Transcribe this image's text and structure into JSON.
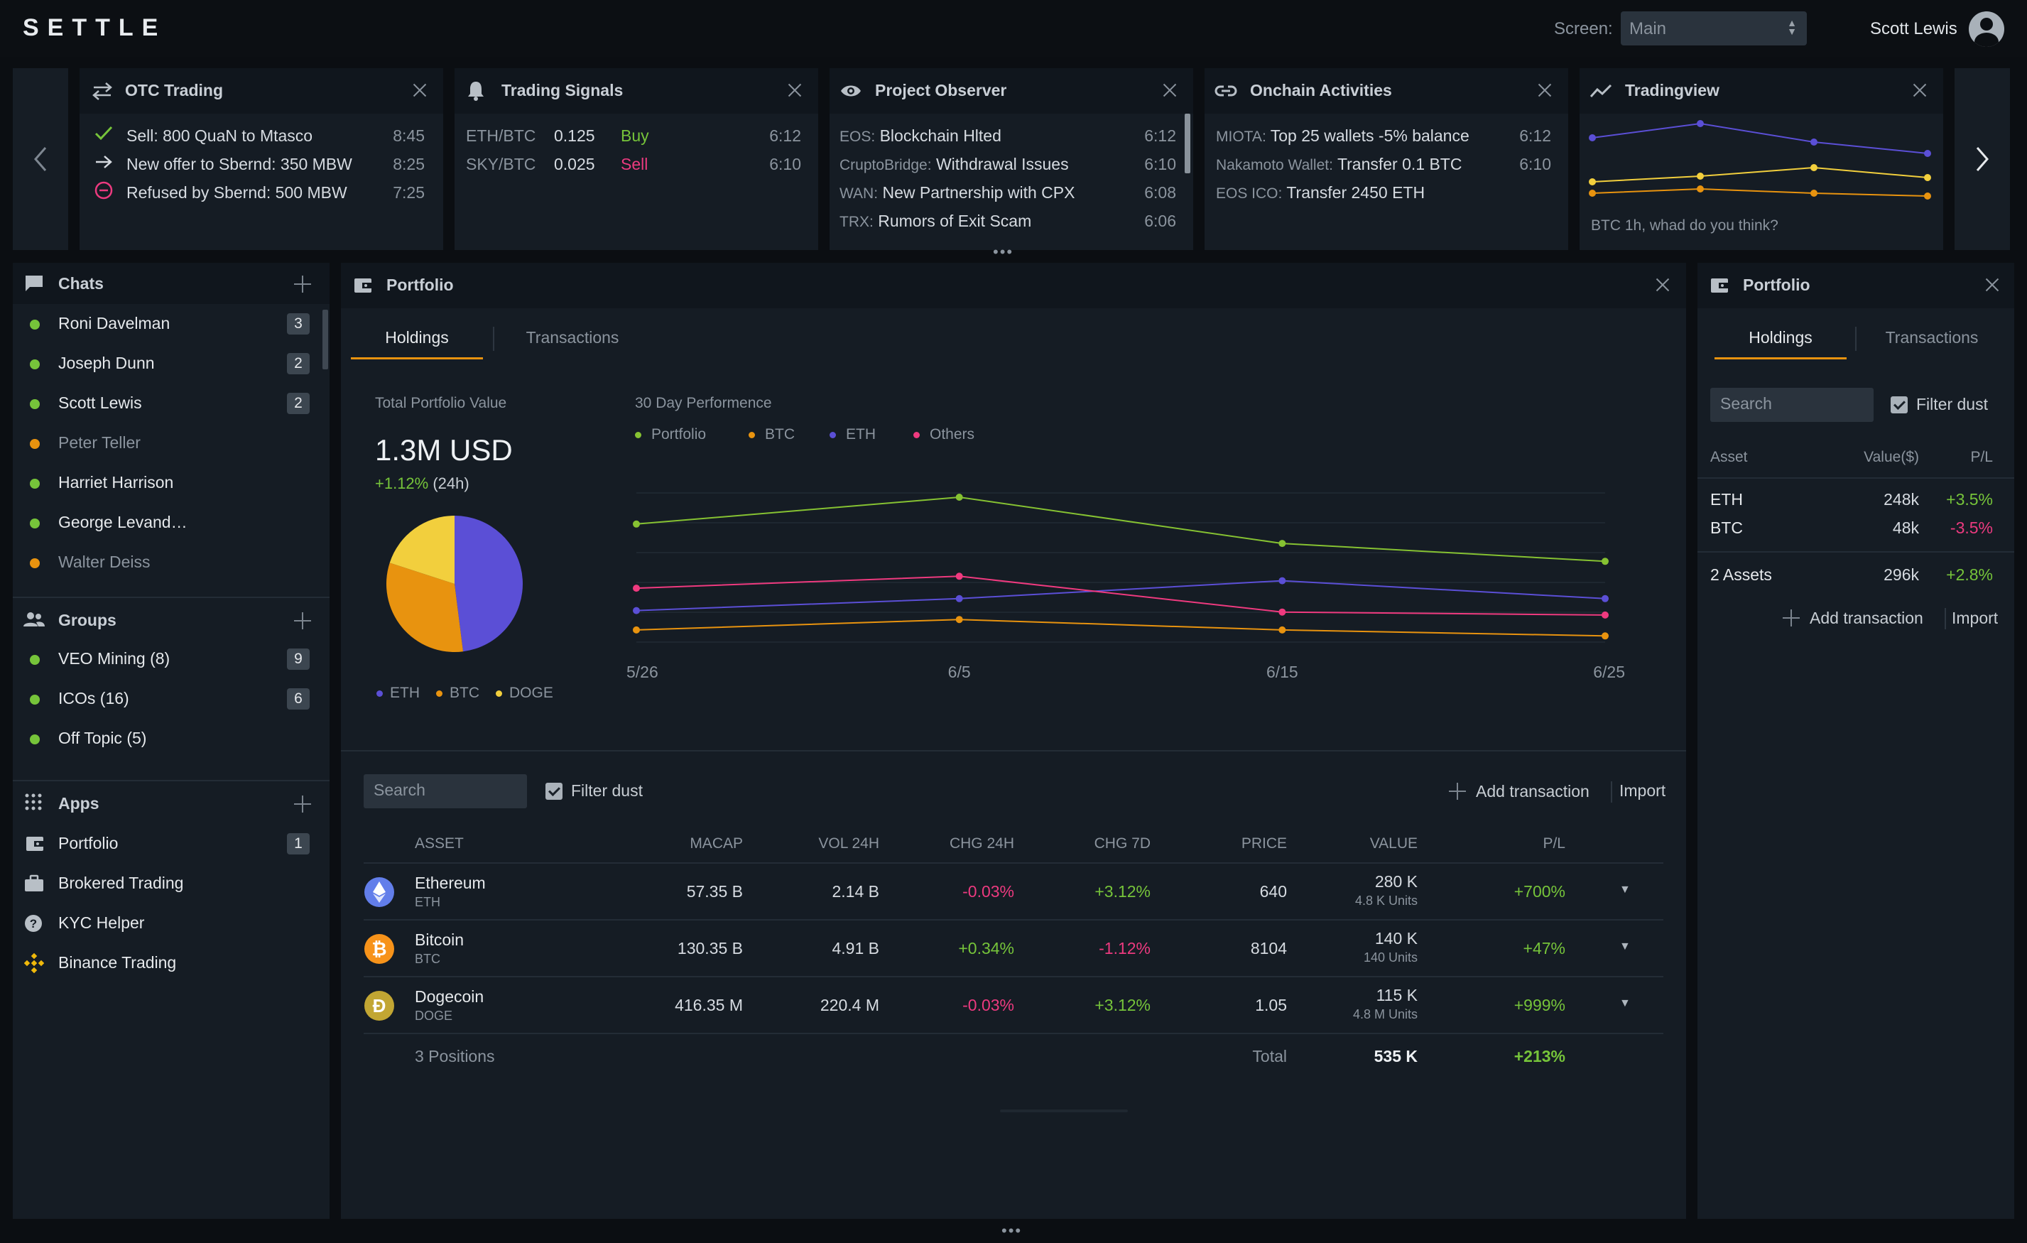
{
  "topbar": {
    "logo": "SETTLE",
    "screen_label": "Screen:",
    "screen_value": "Main",
    "user_name": "Scott Lewis"
  },
  "widgets": {
    "otc": {
      "title": "OTC Trading",
      "rows": [
        {
          "text": "Sell: 800 QuaN to Mtasco",
          "time": "8:45"
        },
        {
          "text": "New offer to Sbernd: 350 MBW",
          "time": "8:25"
        },
        {
          "text": "Refused by Sbernd: 500 MBW",
          "time": "7:25"
        }
      ]
    },
    "signals": {
      "title": "Trading Signals",
      "rows": [
        {
          "pair": "ETH/BTC",
          "value": "0.125",
          "action": "Buy",
          "time": "6:12"
        },
        {
          "pair": "SKY/BTC",
          "value": "0.025",
          "action": "Sell",
          "time": "6:10"
        }
      ]
    },
    "observer": {
      "title": "Project Observer",
      "rows": [
        {
          "source": "EOS:",
          "text": "Blockchain Hlted",
          "time": "6:12"
        },
        {
          "source": "CruptoBridge:",
          "text": "Withdrawal Issues",
          "time": "6:10"
        },
        {
          "source": "WAN:",
          "text": "New Partnership with CPX",
          "time": "6:08"
        },
        {
          "source": "TRX:",
          "text": "Rumors of Exit Scam",
          "time": "6:06"
        }
      ]
    },
    "onchain": {
      "title": "Onchain Activities",
      "rows": [
        {
          "source": "MIOTA:",
          "text": "Top 25 wallets -5% balance",
          "time": "6:12"
        },
        {
          "source": "Nakamoto Wallet:",
          "text": "Transfer 0.1 BTC",
          "time": "6:10"
        },
        {
          "source": "EOS ICO:",
          "text": "Transfer 2450 ETH",
          "time": ""
        }
      ]
    },
    "tradingview": {
      "title": "Tradingview",
      "caption": "BTC 1h, whad do you think?"
    }
  },
  "sidebar": {
    "chats": {
      "title": "Chats",
      "items": [
        {
          "name": "Roni Davelman",
          "badge": "3",
          "status": "online"
        },
        {
          "name": "Joseph Dunn",
          "badge": "2",
          "status": "online"
        },
        {
          "name": "Scott Lewis",
          "badge": "2",
          "status": "online"
        },
        {
          "name": "Peter Teller",
          "badge": "",
          "status": "away"
        },
        {
          "name": "Harriet Harrison",
          "badge": "",
          "status": "online"
        },
        {
          "name": "George Levand…",
          "badge": "",
          "status": "online"
        },
        {
          "name": "Walter Deiss",
          "badge": "",
          "status": "away"
        }
      ]
    },
    "groups": {
      "title": "Groups",
      "items": [
        {
          "name": "VEO Mining (8)",
          "badge": "9"
        },
        {
          "name": "ICOs (16)",
          "badge": "6"
        },
        {
          "name": "Off Topic (5)",
          "badge": ""
        }
      ]
    },
    "apps": {
      "title": "Apps",
      "items": [
        {
          "name": "Portfolio",
          "badge": "1",
          "icon": "wallet-icon"
        },
        {
          "name": "Brokered Trading",
          "badge": "",
          "icon": "briefcase-icon"
        },
        {
          "name": "KYC Helper",
          "badge": "",
          "icon": "help-icon"
        },
        {
          "name": "Binance Trading",
          "badge": "",
          "icon": "binance-icon"
        }
      ]
    }
  },
  "portfolio_main": {
    "title": "Portfolio",
    "tabs": [
      "Holdings",
      "Transactions"
    ],
    "total_label": "Total Portfolio Value",
    "total_value": "1.3M USD",
    "change": "+1.12%",
    "change_period": "(24h)",
    "perf_label": "30 Day Performence",
    "search_placeholder": "Search",
    "filter_label": "Filter dust",
    "add_transaction": "Add transaction",
    "import": "Import",
    "table": {
      "headers": [
        "ASSET",
        "MACAP",
        "VOL 24H",
        "CHG 24H",
        "CHG 7D",
        "PRICE",
        "VALUE",
        "P/L"
      ],
      "rows": [
        {
          "name": "Ethereum",
          "symbol": "ETH",
          "macap": "57.35 B",
          "vol": "2.14 B",
          "chg24": "-0.03%",
          "chg7": "+3.12%",
          "price": "640",
          "value": "280 K",
          "units": "4.8 K Units",
          "pl": "+700%"
        },
        {
          "name": "Bitcoin",
          "symbol": "BTC",
          "macap": "130.35 B",
          "vol": "4.91 B",
          "chg24": "+0.34%",
          "chg7": "-1.12%",
          "price": "8104",
          "value": "140 K",
          "units": "140 Units",
          "pl": "+47%"
        },
        {
          "name": "Dogecoin",
          "symbol": "DOGE",
          "macap": "416.35 M",
          "vol": "220.4 M",
          "chg24": "-0.03%",
          "chg7": "+3.12%",
          "price": "1.05",
          "value": "115 K",
          "units": "4.8 M Units",
          "pl": "+999%"
        }
      ],
      "footer": {
        "positions": "3 Positions",
        "total_label": "Total",
        "total_value": "535 K",
        "total_pl": "+213%"
      }
    }
  },
  "portfolio_side": {
    "title": "Portfolio",
    "tabs": [
      "Holdings",
      "Transactions"
    ],
    "search_placeholder": "Search",
    "filter_label": "Filter dust",
    "headers": [
      "Asset",
      "Value($)",
      "P/L"
    ],
    "rows": [
      {
        "asset": "ETH",
        "value": "248k",
        "pl": "+3.5%"
      },
      {
        "asset": "BTC",
        "value": "48k",
        "pl": "-3.5%"
      }
    ],
    "summary": {
      "asset": "2 Assets",
      "value": "296k",
      "pl": "+2.8%"
    },
    "add_transaction": "Add transaction",
    "import": "Import"
  },
  "colors": {
    "eth": "#5b4fd6",
    "btc": "#e8930f",
    "doge": "#f2cf3d",
    "portfolio": "#86c232",
    "others": "#ef3a7f",
    "green": "#76c43a",
    "red": "#ec3a7f"
  },
  "chart_data": [
    {
      "type": "pie",
      "labels": [
        "ETH",
        "BTC",
        "DOGE"
      ],
      "values": [
        48,
        32,
        20
      ],
      "colors": [
        "#5b4fd6",
        "#e8930f",
        "#f2cf3d"
      ]
    },
    {
      "type": "line",
      "title": "30 Day Performence",
      "x": [
        "5/26",
        "6/5",
        "6/15",
        "6/25"
      ],
      "grid": true,
      "legend": "top-left",
      "series": [
        {
          "name": "Portfolio",
          "color": "#86c232",
          "values": [
            82,
            100,
            69,
            57
          ]
        },
        {
          "name": "BTC",
          "color": "#e8930f",
          "values": [
            11,
            18,
            11,
            7
          ]
        },
        {
          "name": "ETH",
          "color": "#5b4fd6",
          "values": [
            24,
            32,
            44,
            32
          ]
        },
        {
          "name": "Others",
          "color": "#ef3a7f",
          "values": [
            39,
            47,
            23,
            21
          ]
        }
      ]
    }
  ]
}
